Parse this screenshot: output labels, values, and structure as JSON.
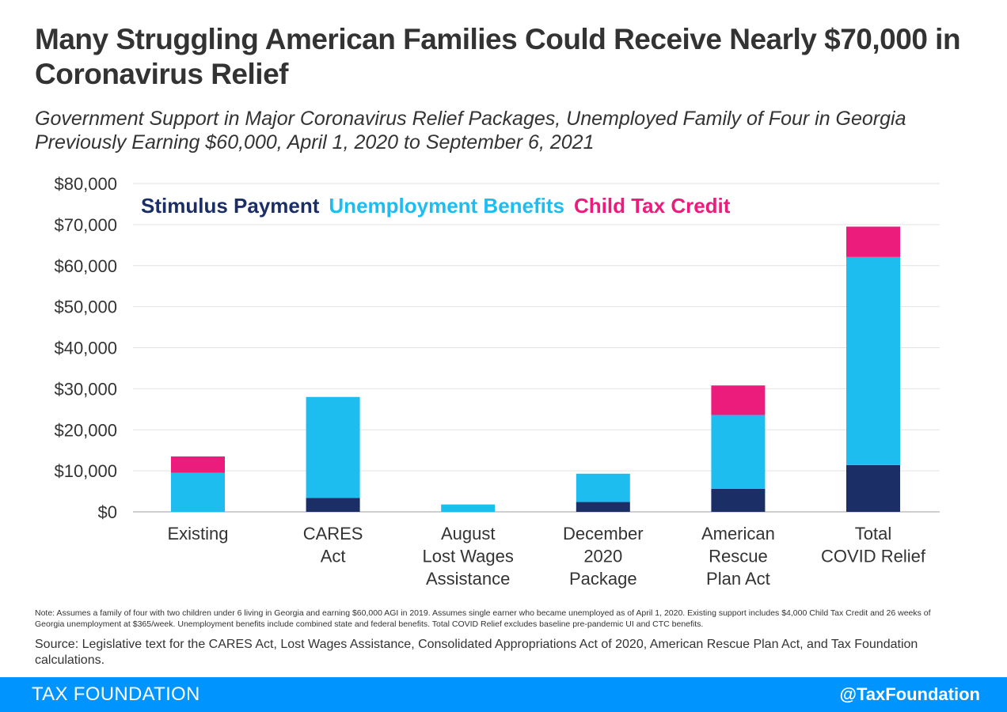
{
  "header": {
    "title": "Many Struggling American Families Could Receive Nearly $70,000 in Coronavirus Relief",
    "subtitle": "Government Support in Major Coronavirus Relief Packages, Unemployed Family of Four in Georgia Previously Earning $60,000, April 1, 2020 to September 6, 2021"
  },
  "chart_data": {
    "type": "bar",
    "stacked": true,
    "title": "",
    "xlabel": "",
    "ylabel": "",
    "ylim": [
      0,
      80000
    ],
    "y_ticks": [
      0,
      10000,
      20000,
      30000,
      40000,
      50000,
      60000,
      70000,
      80000
    ],
    "y_tick_labels": [
      "$0",
      "$10,000",
      "$20,000",
      "$30,000",
      "$40,000",
      "$50,000",
      "$60,000",
      "$70,000",
      "$80,000"
    ],
    "grid": true,
    "legend_position": "top-left",
    "categories": [
      [
        "Existing"
      ],
      [
        "CARES",
        "Act"
      ],
      [
        "August",
        "Lost Wages",
        "Assistance"
      ],
      [
        "December",
        "2020",
        "Package"
      ],
      [
        "American",
        "Rescue",
        "Plan Act"
      ],
      [
        "Total",
        "COVID Relief"
      ]
    ],
    "series": [
      {
        "name": "Stimulus Payment",
        "color": "#1B2F66",
        "values": [
          0,
          3400,
          0,
          2400,
          5600,
          11400
        ]
      },
      {
        "name": "Unemployment Benefits",
        "color": "#1EBDF0",
        "values": [
          9500,
          24600,
          1800,
          6900,
          18000,
          50700
        ]
      },
      {
        "name": "Child Tax Credit",
        "color": "#EC1C7C",
        "values": [
          4000,
          0,
          0,
          0,
          7200,
          7400
        ]
      }
    ]
  },
  "notes": {
    "note": "Note: Assumes a family of four with two children under 6 living in Georgia and earning $60,000 AGI in 2019. Assumes single earner who became unemployed as of April 1, 2020. Existing support includes $4,000 Child Tax Credit and 26 weeks of Georgia unemployment at $365/week. Unemployment benefits include combined state and federal benefits. Total COVID Relief excludes baseline pre-pandemic UI and CTC benefits.",
    "source": "Source: Legislative text for the CARES Act, Lost Wages Assistance, Consolidated Appropriations Act of 2020, American Rescue Plan Act, and Tax Foundation calculations."
  },
  "footer": {
    "brand": "TAX FOUNDATION",
    "handle": "@TaxFoundation",
    "color": "#0094FF"
  }
}
